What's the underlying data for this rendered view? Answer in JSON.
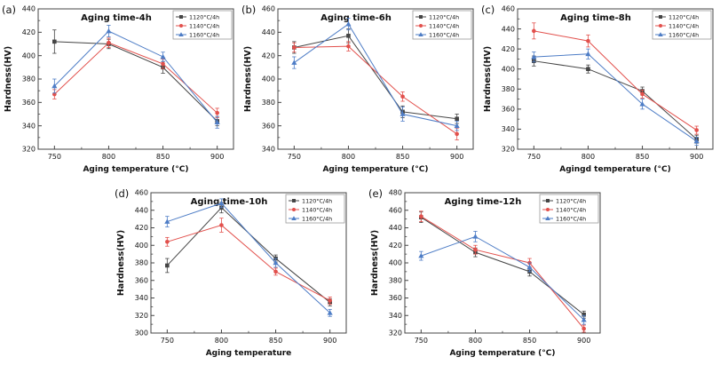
{
  "figure": {
    "background": "#ffffff",
    "description_labels": [
      "(a)",
      "(b)",
      "(c)",
      "(d)",
      "(e)"
    ]
  },
  "colors": {
    "series_1120": "#454545",
    "series_1140": "#e2504c",
    "series_1160": "#4e7dc6",
    "axis": "#444444",
    "text": "#111111"
  },
  "chart_data": [
    {
      "type": "line",
      "panel_label": "(a)",
      "title": "Aging time-4h",
      "xlabel": "Aging temperature (°C)",
      "ylabel": "Hardness(HV)",
      "x": [
        750,
        800,
        850,
        900
      ],
      "xlim": [
        735,
        915
      ],
      "ylim": [
        320,
        440
      ],
      "ytick_step": 20,
      "grid": false,
      "legend_position": "top-right",
      "series": [
        {
          "name": "1120°C/4h",
          "color": "#454545",
          "marker": "square",
          "values": [
            412,
            410,
            390,
            344
          ],
          "yerr": [
            10,
            4,
            5,
            4
          ]
        },
        {
          "name": "1140°C/4h",
          "color": "#e2504c",
          "marker": "circle",
          "values": [
            367,
            411,
            393,
            351
          ],
          "yerr": [
            4,
            4,
            4,
            4
          ]
        },
        {
          "name": "1160°C/4h",
          "color": "#4e7dc6",
          "marker": "triangle",
          "values": [
            374,
            421,
            399,
            343
          ],
          "yerr": [
            6,
            5,
            4,
            5
          ]
        }
      ]
    },
    {
      "type": "line",
      "panel_label": "(b)",
      "title": "Aging time-6h",
      "xlabel": "Aging temperature (°C)",
      "ylabel": "Hardness(HV)",
      "x": [
        750,
        800,
        850,
        900
      ],
      "xlim": [
        735,
        915
      ],
      "ylim": [
        340,
        460
      ],
      "ytick_step": 20,
      "grid": false,
      "legend_position": "top-right",
      "series": [
        {
          "name": "1120°C/4h",
          "color": "#454545",
          "marker": "square",
          "values": [
            427,
            437,
            372,
            366
          ],
          "yerr": [
            5,
            6,
            5,
            4
          ]
        },
        {
          "name": "1140°C/4h",
          "color": "#e2504c",
          "marker": "circle",
          "values": [
            427,
            428,
            385,
            353
          ],
          "yerr": [
            4,
            4,
            4,
            5
          ]
        },
        {
          "name": "1160°C/4h",
          "color": "#4e7dc6",
          "marker": "triangle",
          "values": [
            414,
            447,
            370,
            360
          ],
          "yerr": [
            5,
            5,
            6,
            4
          ]
        }
      ]
    },
    {
      "type": "line",
      "panel_label": "(c)",
      "title": "Aging time-8h",
      "xlabel": "Agingd temperature (°C)",
      "ylabel": "Hardness(HV)",
      "x": [
        750,
        800,
        850,
        900
      ],
      "xlim": [
        735,
        915
      ],
      "ylim": [
        320,
        460
      ],
      "ytick_step": 20,
      "grid": false,
      "legend_position": "top-right",
      "series": [
        {
          "name": "1120°C/4h",
          "color": "#454545",
          "marker": "square",
          "values": [
            408,
            400,
            378,
            330
          ],
          "yerr": [
            5,
            4,
            4,
            4
          ]
        },
        {
          "name": "1140°C/4h",
          "color": "#e2504c",
          "marker": "circle",
          "values": [
            438,
            428,
            375,
            339
          ],
          "yerr": [
            8,
            6,
            4,
            4
          ]
        },
        {
          "name": "1160°C/4h",
          "color": "#4e7dc6",
          "marker": "triangle",
          "values": [
            412,
            415,
            365,
            328
          ],
          "yerr": [
            5,
            5,
            5,
            4
          ]
        }
      ]
    },
    {
      "type": "line",
      "panel_label": "(d)",
      "title": "Aging time-10h",
      "xlabel": "Aging temperature",
      "ylabel": "Hardness(HV)",
      "x": [
        750,
        800,
        850,
        900
      ],
      "xlim": [
        735,
        915
      ],
      "ylim": [
        300,
        460
      ],
      "ytick_step": 20,
      "grid": false,
      "legend_position": "top-right",
      "series": [
        {
          "name": "1120°C/4h",
          "color": "#454545",
          "marker": "square",
          "values": [
            377,
            443,
            385,
            335
          ],
          "yerr": [
            8,
            6,
            4,
            4
          ]
        },
        {
          "name": "1140°C/4h",
          "color": "#e2504c",
          "marker": "circle",
          "values": [
            404,
            423,
            370,
            337
          ],
          "yerr": [
            5,
            8,
            4,
            4
          ]
        },
        {
          "name": "1160°C/4h",
          "color": "#4e7dc6",
          "marker": "triangle",
          "values": [
            427,
            448,
            380,
            323
          ],
          "yerr": [
            6,
            5,
            5,
            4
          ]
        }
      ]
    },
    {
      "type": "line",
      "panel_label": "(e)",
      "title": "Aging time-12h",
      "xlabel": "Aging temperature (°C)",
      "ylabel": "Hardness(HV)",
      "x": [
        750,
        800,
        850,
        900
      ],
      "xlim": [
        735,
        915
      ],
      "ylim": [
        320,
        480
      ],
      "ytick_step": 20,
      "grid": false,
      "legend_position": "top-right",
      "series": [
        {
          "name": "1120°C/4h",
          "color": "#454545",
          "marker": "square",
          "values": [
            452,
            412,
            390,
            341
          ],
          "yerr": [
            6,
            5,
            5,
            4
          ]
        },
        {
          "name": "1140°C/4h",
          "color": "#e2504c",
          "marker": "circle",
          "values": [
            453,
            415,
            400,
            325
          ],
          "yerr": [
            6,
            5,
            5,
            4
          ]
        },
        {
          "name": "1160°C/4h",
          "color": "#4e7dc6",
          "marker": "triangle",
          "values": [
            408,
            430,
            395,
            335
          ],
          "yerr": [
            5,
            6,
            5,
            5
          ]
        }
      ]
    }
  ]
}
